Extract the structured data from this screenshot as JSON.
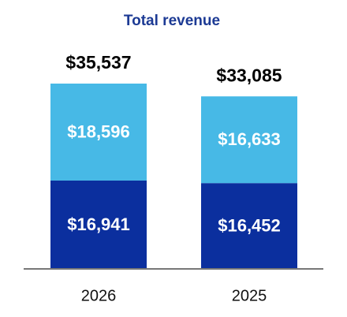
{
  "chart_data": {
    "type": "stacked-bar",
    "title": "Total revenue",
    "categories": [
      "2026",
      "2025"
    ],
    "series": [
      {
        "color": "#0b2f9e",
        "values": [
          16941,
          16452
        ],
        "value_labels": [
          "$16,941",
          "$16,452"
        ]
      },
      {
        "color": "#47b9e6",
        "values": [
          18596,
          16633
        ],
        "value_labels": [
          "$18,596",
          "$16,633"
        ]
      }
    ],
    "totals": [
      35537,
      33085
    ],
    "total_labels": [
      "$35,537",
      "$33,085"
    ],
    "baseline_color": "#777777"
  }
}
